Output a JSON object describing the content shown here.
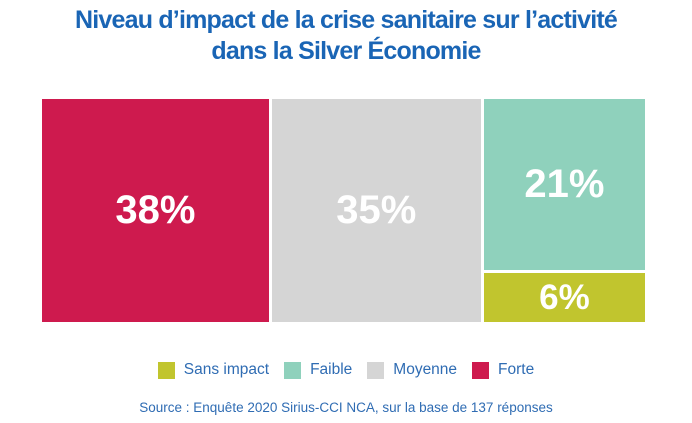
{
  "header": {
    "title_line1": "Niveau d’impact de la crise sanitaire sur l’activité",
    "title_line2": "dans la Silver Économie",
    "title_color": "#1a65b5"
  },
  "chart_data": {
    "type": "bar",
    "subtype": "100-percent-stacked-mosaic",
    "title": "Niveau d’impact de la crise sanitaire sur l’activité dans la Silver Économie",
    "unit": "%",
    "total": 100,
    "legend_position": "bottom",
    "grid": false,
    "segments": [
      {
        "id": "forte",
        "name": "Forte",
        "value": 38,
        "label": "38%",
        "color": "#ce1a4e",
        "text_color": "#ffffff"
      },
      {
        "id": "moyenne",
        "name": "Moyenne",
        "value": 35,
        "label": "35%",
        "color": "#d5d5d5",
        "text_color": "#ffffff"
      },
      {
        "id": "faible",
        "name": "Faible",
        "value": 21,
        "label": "21%",
        "color": "#8fd1bc",
        "text_color": "#ffffff"
      },
      {
        "id": "sans_impact",
        "name": "Sans impact",
        "value": 6,
        "label": "6%",
        "color": "#c1c52e",
        "text_color": "#ffffff"
      }
    ]
  },
  "legend": {
    "text_color": "#2f6cb3",
    "items": [
      {
        "seg": "sans_impact",
        "label": "Sans impact"
      },
      {
        "seg": "faible",
        "label": "Faible"
      },
      {
        "seg": "moyenne",
        "label": "Moyenne"
      },
      {
        "seg": "forte",
        "label": "Forte"
      }
    ]
  },
  "source": {
    "text": "Source : Enquête 2020 Sirius-CCI NCA, sur la base de 137 réponses",
    "text_color": "#2f6cb3"
  }
}
